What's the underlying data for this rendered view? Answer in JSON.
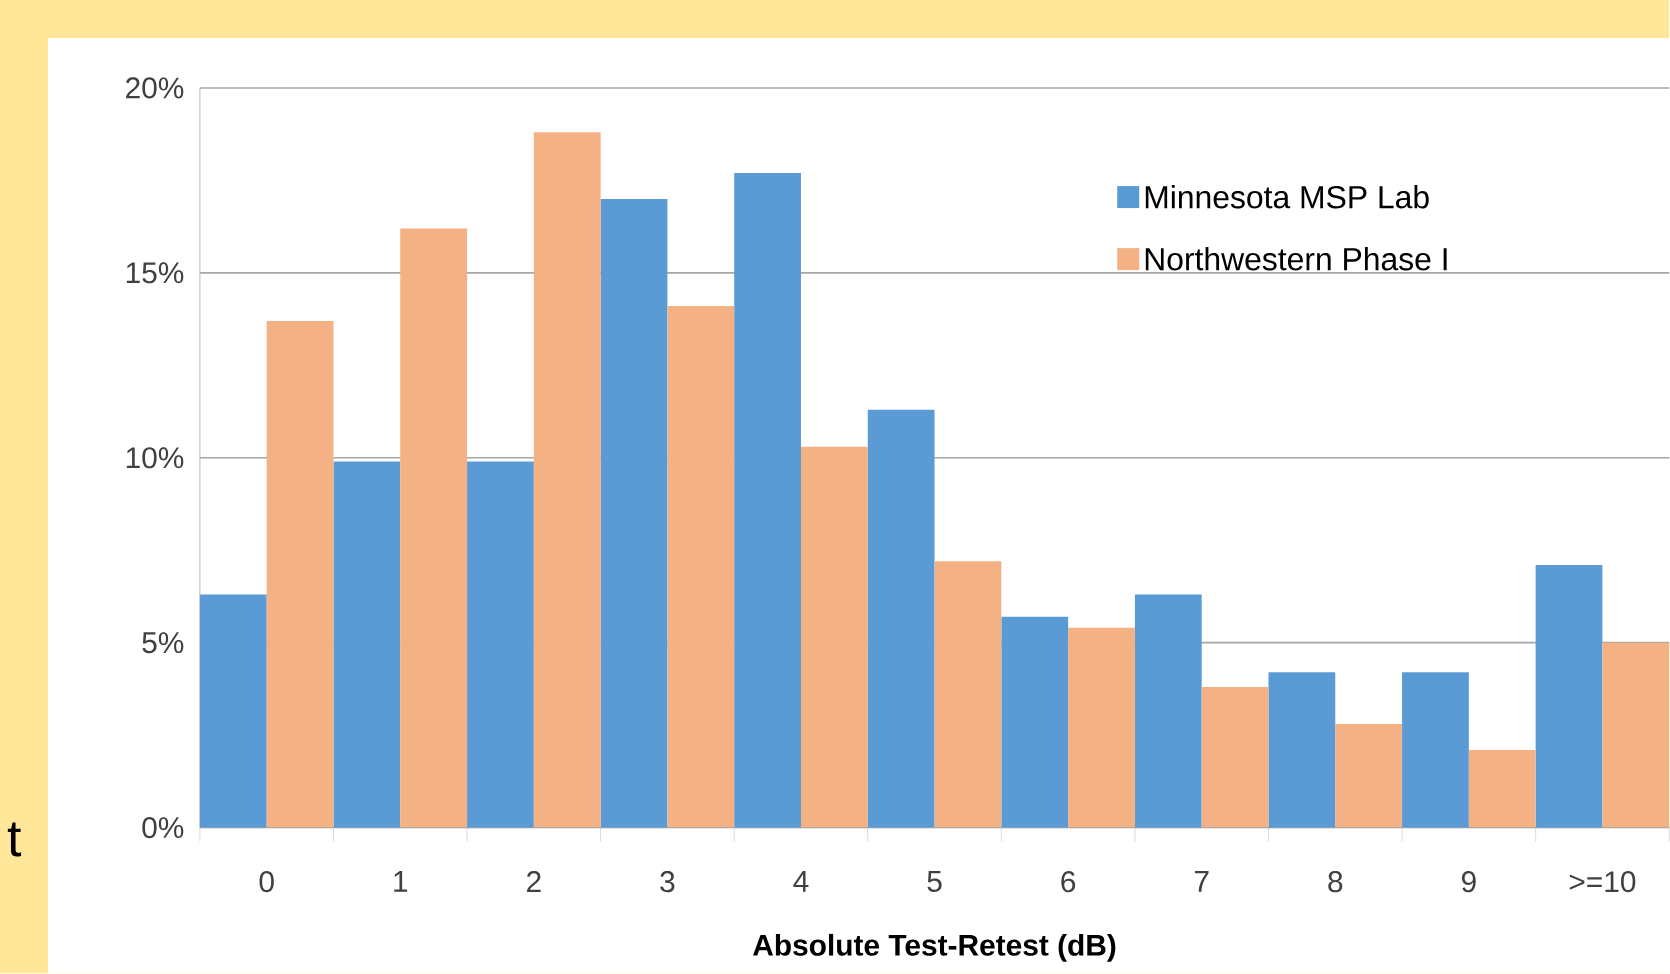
{
  "chart_data": {
    "type": "bar",
    "xlabel": "Absolute Test-Retest (dB)",
    "categories": [
      "0",
      "1",
      "2",
      "3",
      "4",
      "5",
      "6",
      "7",
      "8",
      "9",
      ">=10"
    ],
    "series": [
      {
        "name": "Minnesota MSP Lab",
        "color": "#5b9bd5",
        "values": [
          6.3,
          9.9,
          9.9,
          17.0,
          17.7,
          11.3,
          5.7,
          6.3,
          4.2,
          4.2,
          7.1
        ]
      },
      {
        "name": "Northwestern Phase I",
        "color": "#f4b183",
        "values": [
          13.7,
          16.2,
          18.8,
          14.1,
          10.3,
          7.2,
          5.4,
          3.8,
          2.8,
          2.1,
          5.0
        ]
      }
    ],
    "ylim": [
      0,
      20
    ],
    "yticks": [
      {
        "value": 0,
        "label": "0%"
      },
      {
        "value": 5,
        "label": "5%"
      },
      {
        "value": 10,
        "label": "10%"
      },
      {
        "value": 15,
        "label": "15%"
      },
      {
        "value": 20,
        "label": "20%"
      }
    ],
    "grid": "y",
    "legend": "top right",
    "annotations": [
      "t"
    ]
  }
}
